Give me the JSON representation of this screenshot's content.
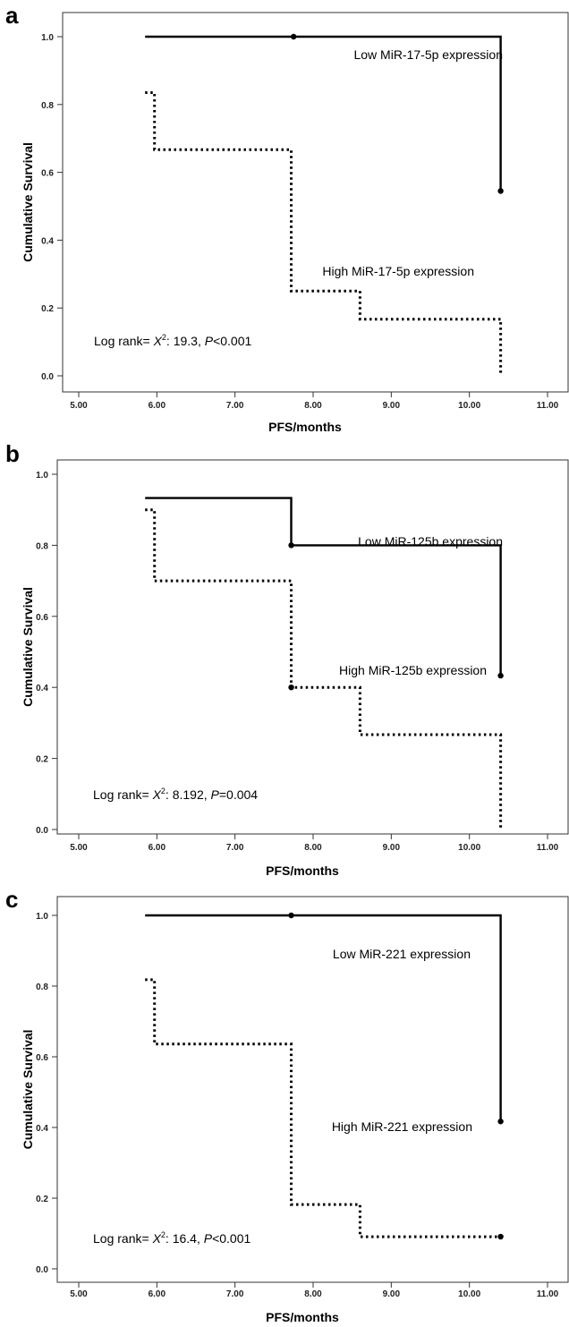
{
  "chart_data": [
    {
      "type": "line",
      "panel_label": "a",
      "xlabel": "PFS/months",
      "ylabel": "Cumulative Survival",
      "xlim": [
        5.0,
        11.0
      ],
      "ylim": [
        0.0,
        1.0
      ],
      "x_ticks": [
        "5.00",
        "6.00",
        "7.00",
        "8.00",
        "9.00",
        "10.00",
        "11.00"
      ],
      "y_ticks": [
        "0.0",
        "0.2",
        "0.4",
        "0.6",
        "0.8",
        "1.0"
      ],
      "series": [
        {
          "name": "Low MiR-17-5p expression",
          "style": "solid",
          "x": [
            5.85,
            10.4,
            10.4
          ],
          "y": [
            1.0,
            1.0,
            0.545
          ],
          "censored": [
            [
              7.75,
              1.0
            ],
            [
              10.4,
              0.545
            ]
          ]
        },
        {
          "name": "High MiR-17-5p expression",
          "style": "dotted",
          "x": [
            5.85,
            5.97,
            5.97,
            7.72,
            7.72,
            8.6,
            8.6,
            10.4,
            10.4
          ],
          "y": [
            0.835,
            0.835,
            0.667,
            0.667,
            0.25,
            0.25,
            0.167,
            0.167,
            0.0
          ],
          "censored": []
        }
      ],
      "annotation": {
        "prefix": "Log rank= ",
        "stat": "X",
        "sup": "2",
        "mid": ": 19.3, ",
        "p": "P",
        "rest": "<0.001"
      },
      "grid": false
    },
    {
      "type": "line",
      "panel_label": "b",
      "xlabel": "PFS/months",
      "ylabel": "Cumulative Survival",
      "xlim": [
        5.0,
        11.0
      ],
      "ylim": [
        0.0,
        1.0
      ],
      "x_ticks": [
        "5.00",
        "6.00",
        "7.00",
        "8.00",
        "9.00",
        "10.00",
        "11.00"
      ],
      "y_ticks": [
        "0.0",
        "0.2",
        "0.4",
        "0.6",
        "0.8",
        "1.0"
      ],
      "series": [
        {
          "name": "Low MiR-125b expression",
          "style": "solid",
          "x": [
            5.85,
            7.72,
            7.72,
            10.4,
            10.4
          ],
          "y": [
            0.933,
            0.933,
            0.8,
            0.8,
            0.433
          ],
          "censored": [
            [
              7.72,
              0.8
            ],
            [
              10.4,
              0.433
            ]
          ]
        },
        {
          "name": "High MiR-125b expression",
          "style": "dotted",
          "x": [
            5.85,
            5.97,
            5.97,
            7.72,
            7.72,
            8.6,
            8.6,
            10.4,
            10.4
          ],
          "y": [
            0.9,
            0.9,
            0.7,
            0.7,
            0.4,
            0.4,
            0.267,
            0.267,
            0.0
          ],
          "censored": [
            [
              7.72,
              0.4
            ]
          ]
        }
      ],
      "annotation": {
        "prefix": "Log rank= ",
        "stat": "X",
        "sup": "2",
        "mid": ": 8.192, ",
        "p": "P",
        "rest": "=0.004"
      },
      "grid": false
    },
    {
      "type": "line",
      "panel_label": "c",
      "xlabel": "PFS/months",
      "ylabel": "Cumulative Survival",
      "xlim": [
        5.0,
        11.0
      ],
      "ylim": [
        0.0,
        1.0
      ],
      "x_ticks": [
        "5.00",
        "6.00",
        "7.00",
        "8.00",
        "9.00",
        "10.00",
        "11.00"
      ],
      "y_ticks": [
        "0.0",
        "0.2",
        "0.4",
        "0.6",
        "0.8",
        "1.0"
      ],
      "series": [
        {
          "name": "Low MiR-221 expression",
          "style": "solid",
          "x": [
            5.85,
            10.4,
            10.4
          ],
          "y": [
            1.0,
            1.0,
            0.417
          ],
          "censored": [
            [
              7.72,
              1.0
            ],
            [
              10.4,
              0.417
            ]
          ]
        },
        {
          "name": "High MiR-221 expression",
          "style": "dotted",
          "x": [
            5.85,
            5.97,
            5.97,
            7.72,
            7.72,
            8.6,
            8.6,
            10.4
          ],
          "y": [
            0.818,
            0.818,
            0.636,
            0.636,
            0.182,
            0.182,
            0.091,
            0.091
          ],
          "censored": [
            [
              10.4,
              0.091
            ]
          ]
        }
      ],
      "annotation": {
        "prefix": "Log rank= ",
        "stat": "X",
        "sup": "2",
        "mid": ": 16.4, ",
        "p": "P",
        "rest": "<0.001"
      },
      "grid": false
    }
  ]
}
